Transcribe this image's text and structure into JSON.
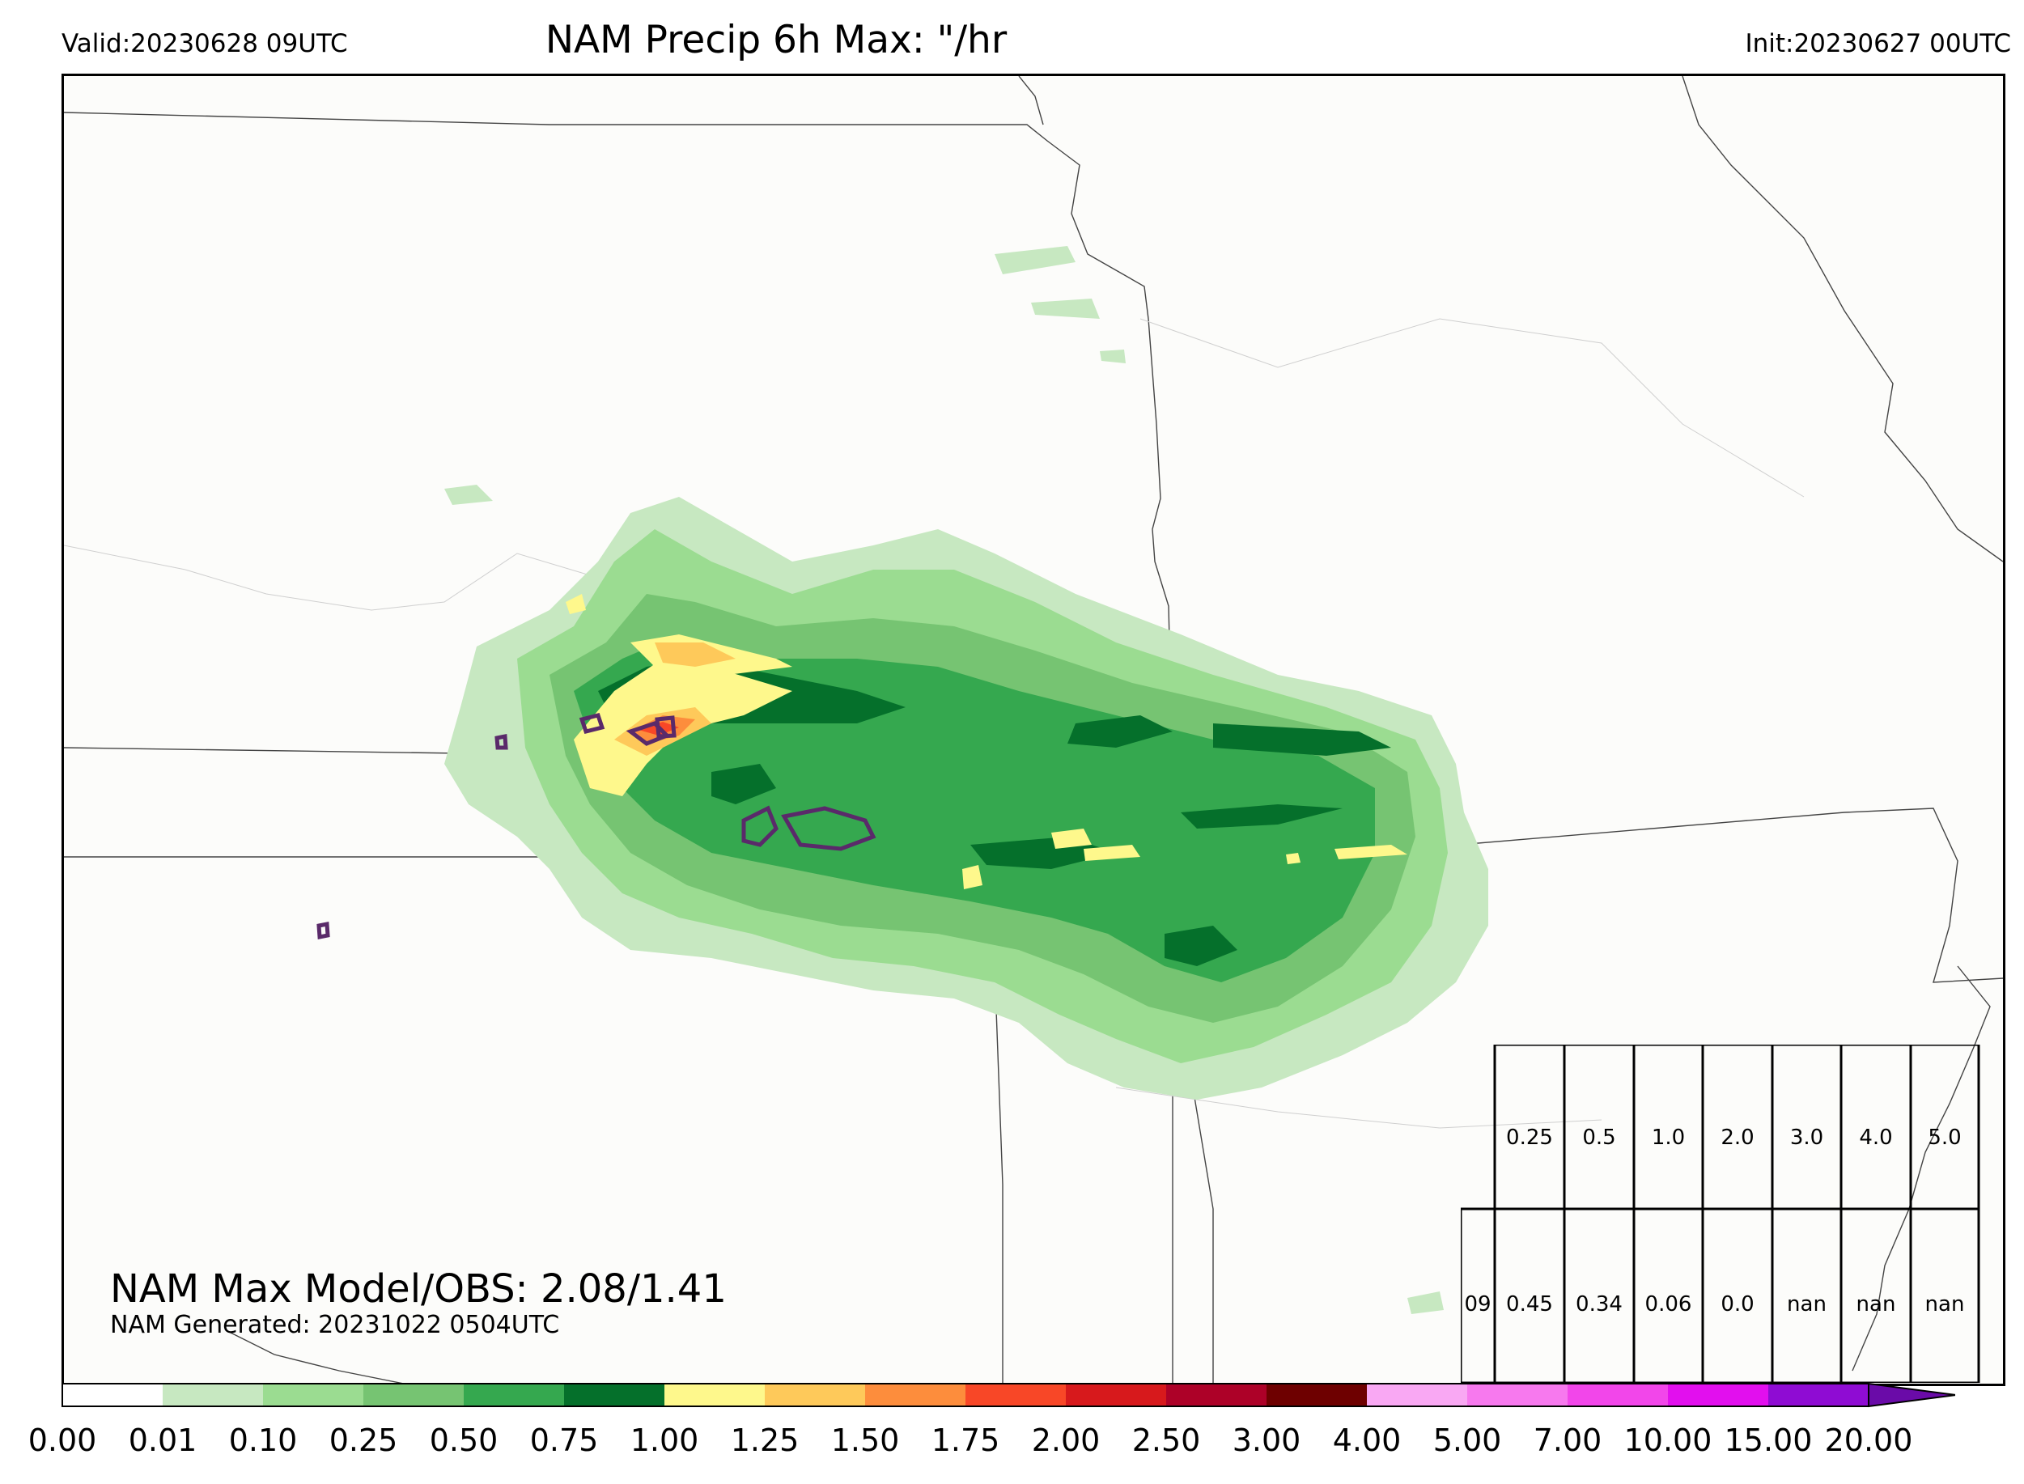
{
  "header": {
    "valid": "Valid:20230628 09UTC",
    "title": "NAM Precip 6h Max: \"/hr",
    "init": "Init:20230627 00UTC"
  },
  "stats": {
    "max_line": "NAM Max Model/OBS: 2.08/1.41",
    "generated": "NAM Generated: 20231022 0504UTC"
  },
  "colorbar": {
    "ticks": [
      "0.00",
      "0.01",
      "0.10",
      "0.25",
      "0.50",
      "0.75",
      "1.00",
      "1.25",
      "1.50",
      "1.75",
      "2.00",
      "2.50",
      "3.00",
      "4.00",
      "5.00",
      "7.00",
      "10.00",
      "15.00",
      "20.00"
    ],
    "colors": [
      "#ffffff",
      "#c7e8c1",
      "#9bdc91",
      "#76c472",
      "#35a84f",
      "#05702b",
      "#fef88c",
      "#fec95a",
      "#fd8d3c",
      "#f84727",
      "#d7191c",
      "#ad0128",
      "#6e0000",
      "#f9a8f3",
      "#f779ee",
      "#f246ea",
      "#e20fee",
      "#8f0cd3"
    ],
    "extend_color": "#6a0ba8"
  },
  "table": {
    "thresholds": [
      "0.25",
      "0.5",
      "1.0",
      "2.0",
      "3.0",
      "4.0",
      "5.0"
    ],
    "row_label": "09",
    "values": [
      "0.45",
      "0.34",
      "0.06",
      "0.0",
      "nan",
      "nan",
      "nan"
    ]
  },
  "map": {
    "region": "central Great Plains",
    "obs_contour_color": "#5a2a6a"
  }
}
